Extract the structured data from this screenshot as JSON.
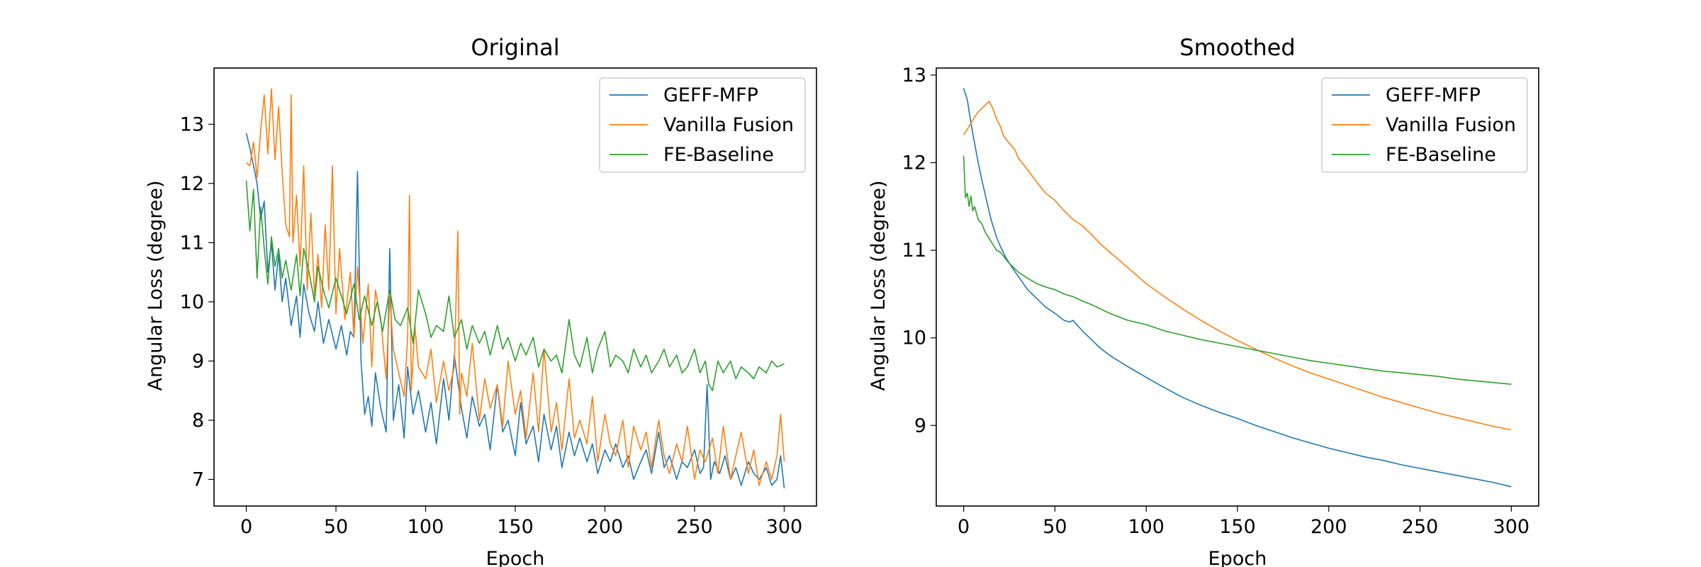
{
  "chart_data": [
    {
      "type": "line",
      "title": "Original",
      "xlabel": "Epoch",
      "ylabel": "Angular Loss (degree)",
      "xlim": [
        -18,
        318
      ],
      "ylim": [
        6.55,
        13.95
      ],
      "xticks": [
        0,
        50,
        100,
        150,
        200,
        250,
        300
      ],
      "yticks": [
        7,
        8,
        9,
        10,
        11,
        12,
        13
      ],
      "legend_position": "top-right",
      "series": [
        {
          "name": "GEFF-MFP",
          "color": "#1f77b4",
          "x": [
            0,
            2,
            4,
            6,
            8,
            10,
            12,
            14,
            16,
            18,
            20,
            22,
            25,
            28,
            30,
            32,
            35,
            38,
            40,
            43,
            46,
            50,
            53,
            56,
            58,
            60,
            62,
            64,
            66,
            68,
            70,
            72,
            75,
            78,
            80,
            82,
            85,
            88,
            90,
            93,
            96,
            100,
            103,
            106,
            110,
            113,
            116,
            120,
            123,
            126,
            130,
            133,
            136,
            140,
            143,
            146,
            150,
            153,
            156,
            160,
            163,
            166,
            170,
            173,
            176,
            180,
            183,
            186,
            190,
            193,
            196,
            200,
            203,
            206,
            210,
            213,
            216,
            220,
            223,
            226,
            230,
            233,
            236,
            240,
            243,
            246,
            250,
            253,
            255,
            257,
            259,
            261,
            264,
            267,
            270,
            273,
            276,
            280,
            283,
            286,
            290,
            293,
            296,
            298,
            300
          ],
          "y": [
            12.85,
            12.6,
            12.3,
            12.0,
            11.4,
            11.7,
            10.5,
            11.0,
            10.2,
            10.8,
            10.0,
            10.4,
            9.6,
            10.1,
            9.4,
            10.3,
            9.8,
            9.5,
            10.0,
            9.3,
            9.7,
            9.2,
            9.6,
            9.1,
            9.5,
            9.4,
            12.2,
            9.0,
            8.1,
            8.4,
            7.9,
            8.8,
            8.2,
            7.8,
            10.9,
            8.0,
            8.6,
            7.7,
            8.9,
            8.1,
            8.5,
            7.8,
            8.3,
            7.6,
            8.7,
            8.0,
            9.1,
            8.2,
            7.7,
            8.4,
            7.9,
            8.1,
            7.5,
            8.6,
            7.8,
            8.0,
            7.4,
            8.3,
            7.6,
            7.9,
            7.3,
            8.1,
            7.5,
            7.9,
            7.2,
            7.8,
            7.4,
            7.7,
            7.3,
            7.6,
            7.1,
            7.5,
            7.3,
            7.6,
            7.2,
            7.4,
            7.0,
            7.3,
            7.5,
            7.1,
            7.8,
            7.2,
            7.4,
            7.0,
            7.3,
            7.2,
            7.5,
            7.1,
            7.2,
            8.6,
            7.0,
            7.3,
            7.1,
            7.4,
            7.0,
            7.2,
            6.9,
            7.3,
            7.1,
            7.0,
            7.2,
            6.9,
            7.0,
            7.4,
            6.85
          ]
        },
        {
          "name": "Vanilla Fusion",
          "color": "#ff7f0e",
          "x": [
            0,
            2,
            4,
            6,
            8,
            10,
            12,
            14,
            16,
            18,
            20,
            22,
            24,
            25,
            26,
            28,
            30,
            32,
            34,
            36,
            38,
            40,
            42,
            44,
            46,
            48,
            50,
            52,
            55,
            58,
            60,
            62,
            65,
            68,
            70,
            72,
            75,
            78,
            80,
            82,
            85,
            88,
            90,
            91,
            92,
            94,
            96,
            100,
            103,
            106,
            110,
            113,
            116,
            118,
            119,
            120,
            123,
            126,
            130,
            133,
            136,
            140,
            143,
            146,
            150,
            153,
            156,
            160,
            163,
            166,
            170,
            173,
            176,
            180,
            183,
            186,
            190,
            193,
            196,
            200,
            203,
            206,
            210,
            213,
            216,
            220,
            223,
            226,
            230,
            233,
            236,
            240,
            243,
            246,
            250,
            253,
            256,
            260,
            263,
            266,
            270,
            273,
            276,
            280,
            283,
            286,
            290,
            293,
            296,
            298,
            300
          ],
          "y": [
            12.35,
            12.3,
            12.7,
            12.1,
            12.9,
            13.5,
            12.5,
            13.6,
            12.4,
            13.3,
            12.2,
            11.3,
            11.1,
            13.5,
            11.0,
            11.8,
            10.6,
            12.3,
            10.2,
            11.5,
            10.1,
            10.8,
            9.9,
            11.3,
            10.2,
            12.3,
            9.8,
            10.9,
            9.7,
            10.5,
            9.4,
            10.6,
            9.3,
            10.3,
            8.9,
            10.2,
            9.7,
            8.7,
            10.1,
            9.2,
            8.8,
            8.4,
            9.4,
            11.8,
            8.5,
            9.6,
            8.9,
            8.7,
            9.2,
            8.3,
            9.0,
            8.5,
            8.9,
            11.2,
            8.1,
            8.8,
            8.4,
            9.3,
            8.0,
            8.7,
            8.2,
            8.6,
            7.9,
            9.0,
            8.1,
            8.5,
            7.7,
            8.8,
            7.8,
            9.2,
            7.8,
            8.3,
            7.5,
            8.7,
            7.7,
            8.0,
            7.6,
            8.4,
            7.3,
            8.1,
            7.6,
            7.4,
            8.0,
            7.2,
            7.9,
            7.5,
            7.8,
            7.2,
            8.0,
            7.4,
            7.1,
            7.6,
            7.3,
            7.9,
            7.0,
            7.5,
            7.3,
            7.7,
            7.1,
            7.9,
            7.0,
            7.4,
            7.8,
            7.1,
            7.5,
            6.9,
            7.3,
            7.0,
            7.4,
            8.1,
            7.3
          ]
        },
        {
          "name": "FE-Baseline",
          "color": "#2ca02c",
          "x": [
            0,
            2,
            4,
            6,
            8,
            10,
            12,
            14,
            16,
            18,
            20,
            22,
            25,
            28,
            30,
            32,
            35,
            38,
            40,
            43,
            46,
            50,
            53,
            56,
            60,
            63,
            66,
            70,
            73,
            76,
            80,
            83,
            86,
            90,
            93,
            96,
            100,
            103,
            106,
            110,
            113,
            116,
            120,
            123,
            126,
            130,
            133,
            136,
            140,
            143,
            146,
            150,
            153,
            156,
            160,
            163,
            166,
            170,
            173,
            176,
            180,
            183,
            186,
            190,
            193,
            196,
            200,
            203,
            206,
            210,
            213,
            216,
            220,
            223,
            226,
            230,
            233,
            236,
            240,
            243,
            246,
            250,
            253,
            256,
            258,
            260,
            263,
            266,
            270,
            273,
            276,
            280,
            283,
            286,
            290,
            293,
            296,
            300
          ],
          "y": [
            12.05,
            11.2,
            11.9,
            10.4,
            11.6,
            10.9,
            10.3,
            11.1,
            10.6,
            10.9,
            10.4,
            10.7,
            10.2,
            10.8,
            10.1,
            10.9,
            10.5,
            10.0,
            10.6,
            10.2,
            9.9,
            10.4,
            10.1,
            9.8,
            10.3,
            9.7,
            10.1,
            9.6,
            10.0,
            9.5,
            10.2,
            9.7,
            9.6,
            9.9,
            9.3,
            10.2,
            9.8,
            9.4,
            9.6,
            9.5,
            10.1,
            9.4,
            9.7,
            9.2,
            9.6,
            9.3,
            9.5,
            9.1,
            9.6,
            9.2,
            9.4,
            9.0,
            9.3,
            9.1,
            9.4,
            8.9,
            9.2,
            9.0,
            9.1,
            8.8,
            9.7,
            9.1,
            8.9,
            9.4,
            8.8,
            9.2,
            9.5,
            8.9,
            9.1,
            9.0,
            8.8,
            9.2,
            8.9,
            9.1,
            8.8,
            9.0,
            9.2,
            8.9,
            9.1,
            8.8,
            8.9,
            9.2,
            8.8,
            9.0,
            8.6,
            8.5,
            9.0,
            8.8,
            9.0,
            8.7,
            8.9,
            8.8,
            8.7,
            8.9,
            8.8,
            9.0,
            8.9,
            8.95
          ]
        }
      ]
    },
    {
      "type": "line",
      "title": "Smoothed",
      "xlabel": "Epoch",
      "ylabel": "Angular Loss (degree)",
      "xlim": [
        -15,
        315
      ],
      "ylim": [
        8.08,
        13.08
      ],
      "xticks": [
        0,
        50,
        100,
        150,
        200,
        250,
        300
      ],
      "yticks": [
        9,
        10,
        11,
        12,
        13
      ],
      "legend_position": "top-right",
      "series": [
        {
          "name": "GEFF-MFP",
          "color": "#1f77b4",
          "x": [
            0,
            2,
            4,
            6,
            8,
            10,
            12,
            15,
            18,
            20,
            23,
            26,
            30,
            35,
            40,
            45,
            50,
            55,
            58,
            60,
            62,
            65,
            70,
            75,
            80,
            90,
            100,
            110,
            120,
            130,
            140,
            150,
            160,
            170,
            180,
            190,
            200,
            210,
            220,
            230,
            240,
            250,
            260,
            270,
            280,
            290,
            300
          ],
          "y": [
            12.85,
            12.72,
            12.45,
            12.22,
            12.0,
            11.8,
            11.62,
            11.35,
            11.15,
            11.05,
            10.92,
            10.82,
            10.7,
            10.55,
            10.45,
            10.35,
            10.28,
            10.2,
            10.18,
            10.2,
            10.15,
            10.08,
            9.98,
            9.88,
            9.8,
            9.67,
            9.55,
            9.43,
            9.32,
            9.23,
            9.15,
            9.08,
            9.0,
            8.93,
            8.86,
            8.8,
            8.74,
            8.69,
            8.64,
            8.6,
            8.55,
            8.51,
            8.47,
            8.43,
            8.39,
            8.35,
            8.3
          ]
        },
        {
          "name": "Vanilla Fusion",
          "color": "#ff7f0e",
          "x": [
            0,
            2,
            4,
            6,
            8,
            10,
            12,
            14,
            16,
            18,
            20,
            22,
            25,
            28,
            30,
            35,
            40,
            45,
            50,
            55,
            60,
            65,
            70,
            75,
            80,
            90,
            100,
            110,
            120,
            130,
            140,
            150,
            160,
            170,
            180,
            190,
            200,
            210,
            220,
            230,
            240,
            250,
            260,
            270,
            280,
            290,
            300
          ],
          "y": [
            12.32,
            12.38,
            12.45,
            12.52,
            12.58,
            12.62,
            12.66,
            12.7,
            12.62,
            12.5,
            12.42,
            12.3,
            12.22,
            12.15,
            12.05,
            11.92,
            11.78,
            11.65,
            11.57,
            11.45,
            11.35,
            11.28,
            11.18,
            11.07,
            10.98,
            10.8,
            10.62,
            10.47,
            10.33,
            10.2,
            10.08,
            9.97,
            9.87,
            9.77,
            9.68,
            9.6,
            9.53,
            9.46,
            9.39,
            9.32,
            9.26,
            9.2,
            9.14,
            9.09,
            9.04,
            8.99,
            8.95
          ]
        },
        {
          "name": "FE-Baseline",
          "color": "#2ca02c",
          "x": [
            0,
            1,
            2,
            3,
            4,
            5,
            6,
            8,
            10,
            12,
            15,
            18,
            20,
            25,
            30,
            35,
            40,
            45,
            50,
            55,
            60,
            65,
            70,
            75,
            80,
            90,
            100,
            110,
            120,
            130,
            140,
            150,
            160,
            170,
            180,
            190,
            200,
            210,
            220,
            230,
            240,
            250,
            260,
            270,
            280,
            290,
            300
          ],
          "y": [
            12.08,
            11.6,
            11.65,
            11.5,
            11.62,
            11.45,
            11.5,
            11.35,
            11.3,
            11.2,
            11.1,
            11.0,
            10.98,
            10.85,
            10.75,
            10.68,
            10.62,
            10.58,
            10.55,
            10.5,
            10.47,
            10.42,
            10.38,
            10.33,
            10.28,
            10.2,
            10.15,
            10.08,
            10.03,
            9.98,
            9.94,
            9.9,
            9.86,
            9.82,
            9.78,
            9.74,
            9.71,
            9.68,
            9.65,
            9.62,
            9.6,
            9.58,
            9.56,
            9.53,
            9.51,
            9.49,
            9.47
          ]
        }
      ]
    }
  ]
}
